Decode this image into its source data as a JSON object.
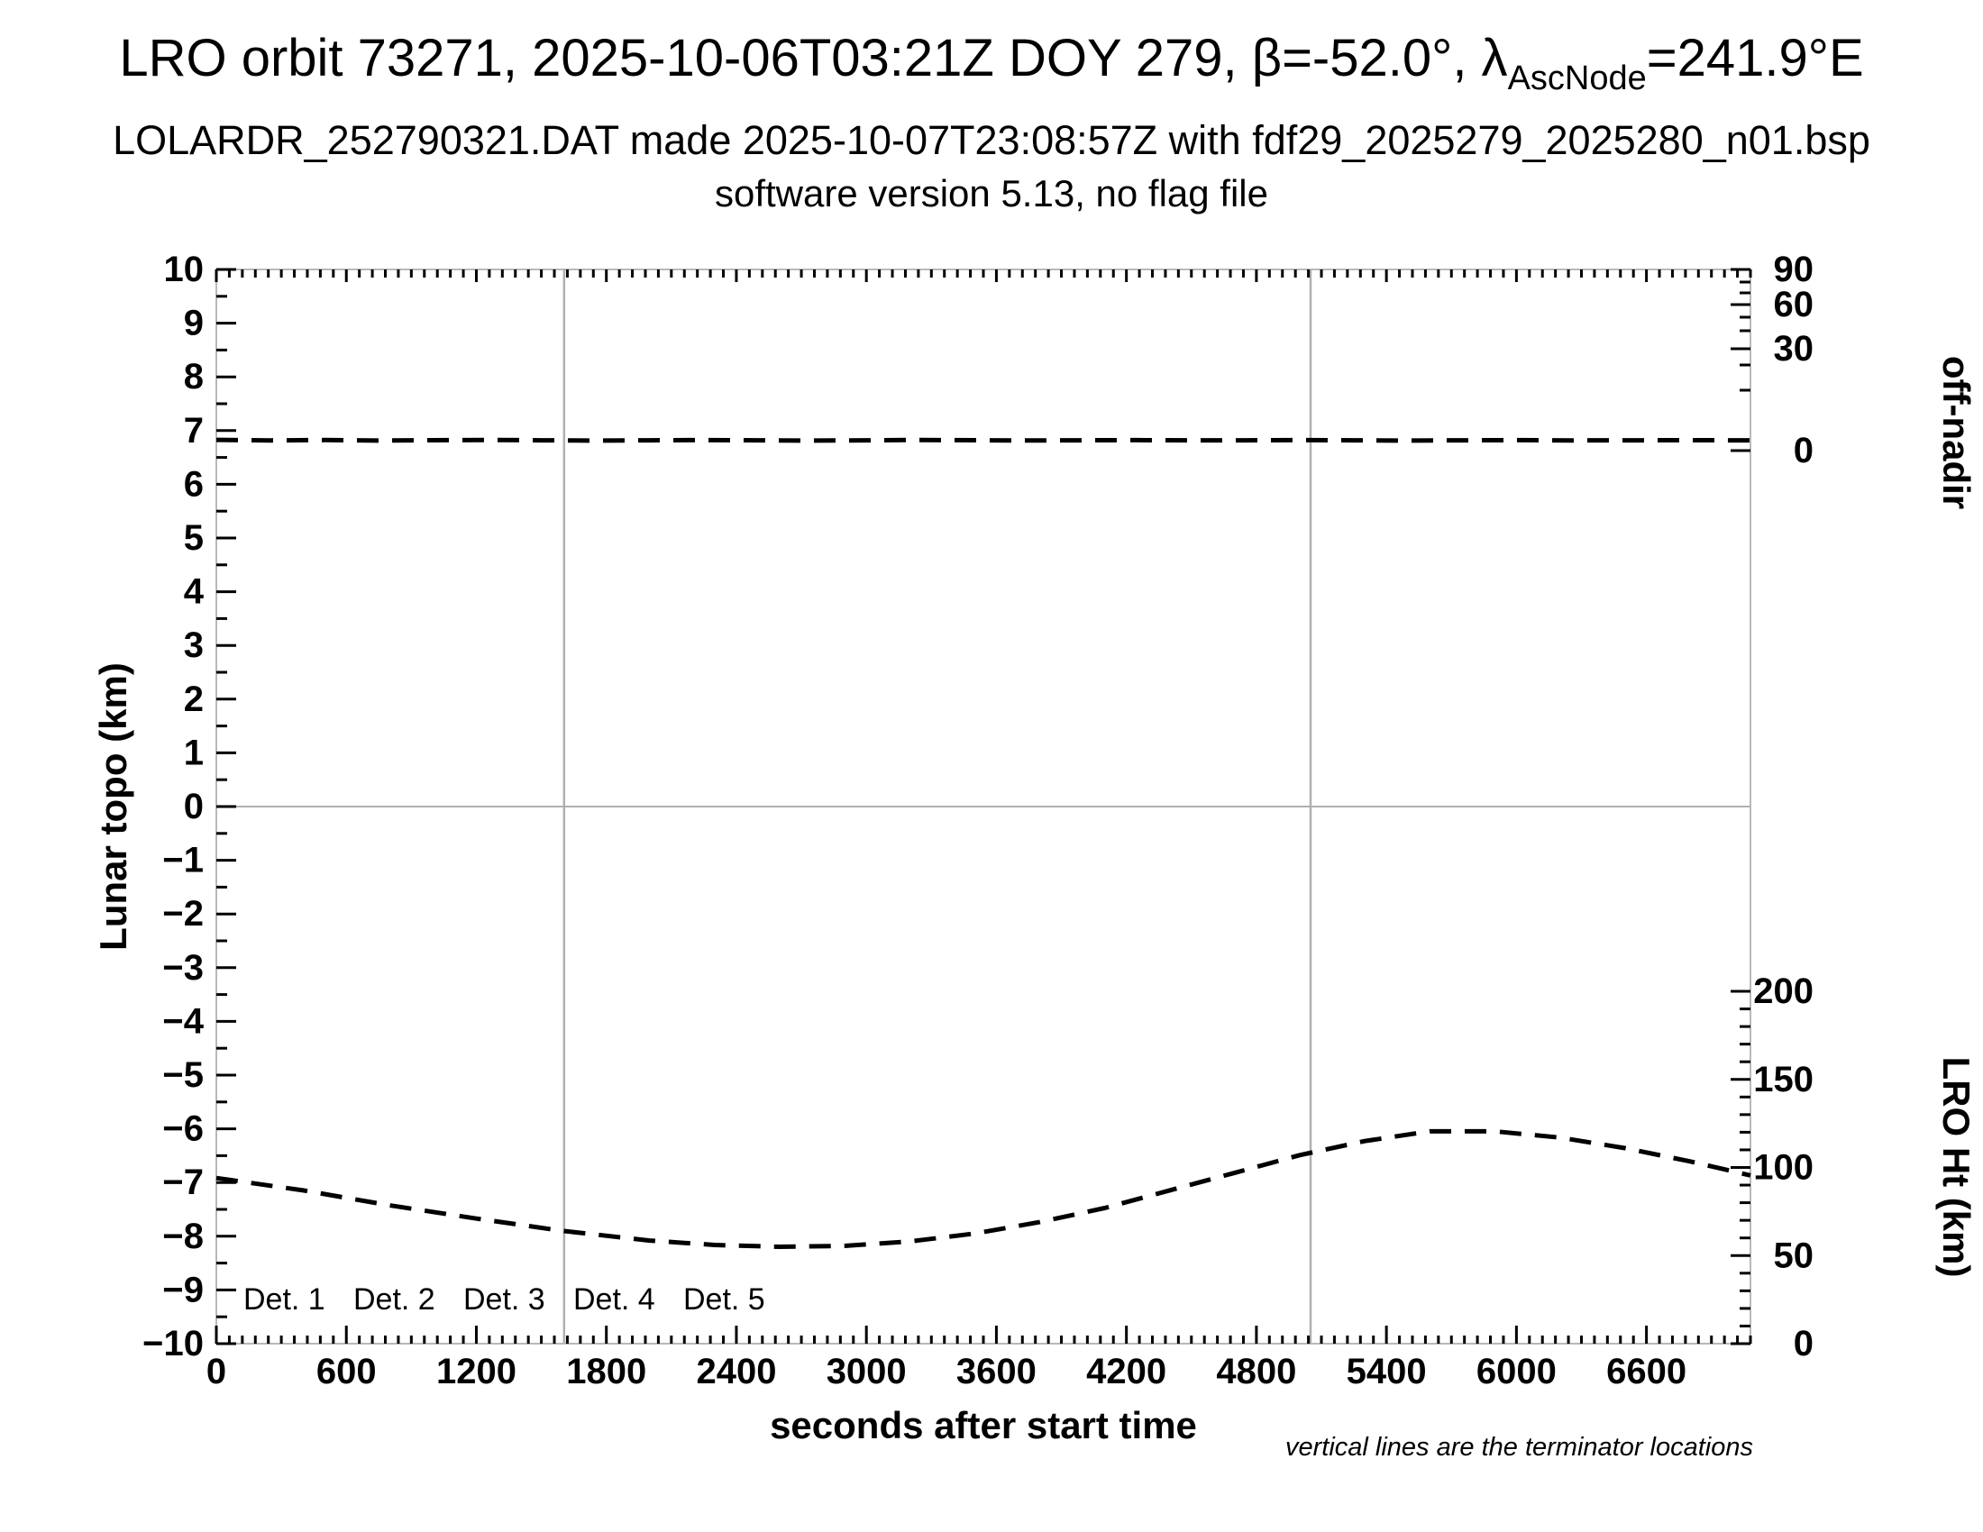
{
  "header": {
    "title_prefix": "LRO orbit 73271, 2025-10-06T03:21Z DOY 279, β=-52.0°, λ",
    "title_lambda_sub": "AscNode",
    "title_suffix": "=241.9°E",
    "subtitle": "LOLARDR_252790321.DAT made 2025-10-07T23:08:57Z with fdf29_2025279_2025280_n01.bsp",
    "version_line": "software version 5.13, no flag file"
  },
  "chart_data": {
    "type": "line",
    "x_axis": {
      "label": "seconds after start time",
      "range": [
        0,
        7080
      ],
      "major_tick_step": 600,
      "minor_tick_step": 60,
      "tick_labels": [
        "0",
        "600",
        "1200",
        "1800",
        "2400",
        "3000",
        "3600",
        "4200",
        "4800",
        "5400",
        "6000",
        "6600"
      ]
    },
    "y_axis_left": {
      "label": "Lunar topo (km)",
      "range": [
        -10,
        10
      ],
      "major_tick_step": 1,
      "minor_tick_step": 0.5,
      "tick_labels": [
        "10",
        "9",
        "8",
        "7",
        "6",
        "5",
        "4",
        "3",
        "2",
        "1",
        "0",
        "−1",
        "−2",
        "−3",
        "−4",
        "−5",
        "−6",
        "−7",
        "−8",
        "−9",
        "−10"
      ]
    },
    "y_axis_right_top": {
      "label": "off-nadir",
      "tick_values": [
        90,
        80,
        70,
        60,
        50,
        40,
        30,
        20,
        10,
        0
      ],
      "labeled_values": [
        90,
        60,
        30,
        0
      ],
      "tick_labels": [
        "90",
        "60",
        "30",
        "0"
      ],
      "scale": "nonlinear"
    },
    "y_axis_right_bottom": {
      "label": "LRO Ht (km)",
      "range": [
        0,
        200
      ],
      "major_tick_step": 50,
      "minor_tick_step": 10,
      "tick_labels": [
        "200",
        "150",
        "100",
        "50",
        "0"
      ]
    },
    "grid": {
      "horizontal_line_at_topo": 0,
      "terminator_lines_seconds": [
        1605,
        5050
      ]
    },
    "legend": {
      "items": [
        {
          "label": "Det. 1",
          "color": "#000000"
        },
        {
          "label": "Det. 2",
          "color": "#0000ff"
        },
        {
          "label": "Det. 3",
          "color": "#00dd22"
        },
        {
          "label": "Det. 4",
          "color": "#ffa500"
        },
        {
          "label": "Det. 5",
          "color": "#ff0000"
        }
      ]
    },
    "footnote": "vertical lines are the terminator locations",
    "series": [
      {
        "name": "spacecraft off-nadir angle",
        "axis": "y_axis_right_top",
        "unit": "deg",
        "line_style": "dashed",
        "color": "#000000",
        "points": [
          [
            0,
            1.78
          ],
          [
            250,
            1.68
          ],
          [
            500,
            1.74
          ],
          [
            750,
            1.66
          ],
          [
            1000,
            1.72
          ],
          [
            1250,
            1.76
          ],
          [
            1500,
            1.7
          ],
          [
            1750,
            1.66
          ],
          [
            2000,
            1.7
          ],
          [
            2250,
            1.74
          ],
          [
            2500,
            1.7
          ],
          [
            2750,
            1.65
          ],
          [
            3000,
            1.7
          ],
          [
            3250,
            1.76
          ],
          [
            3500,
            1.72
          ],
          [
            3750,
            1.67
          ],
          [
            4000,
            1.7
          ],
          [
            4250,
            1.73
          ],
          [
            4500,
            1.68
          ],
          [
            4750,
            1.7
          ],
          [
            5000,
            1.74
          ],
          [
            5250,
            1.7
          ],
          [
            5500,
            1.66
          ],
          [
            5750,
            1.7
          ],
          [
            6000,
            1.73
          ],
          [
            6250,
            1.68
          ],
          [
            6500,
            1.7
          ],
          [
            6750,
            1.72
          ],
          [
            7080,
            1.7
          ]
        ]
      },
      {
        "name": "LRO height",
        "axis": "y_axis_right_bottom",
        "unit": "km",
        "line_style": "dashed",
        "color": "#000000",
        "points": [
          [
            0,
            94
          ],
          [
            400,
            87
          ],
          [
            800,
            78.5
          ],
          [
            1200,
            71
          ],
          [
            1600,
            64
          ],
          [
            2000,
            58.5
          ],
          [
            2300,
            56
          ],
          [
            2600,
            55
          ],
          [
            2900,
            55.5
          ],
          [
            3200,
            58
          ],
          [
            3500,
            62.5
          ],
          [
            3800,
            69
          ],
          [
            4100,
            77
          ],
          [
            4400,
            87
          ],
          [
            4700,
            97
          ],
          [
            5000,
            107
          ],
          [
            5300,
            115
          ],
          [
            5600,
            120.5
          ],
          [
            5900,
            120.5
          ],
          [
            6200,
            117
          ],
          [
            6500,
            111
          ],
          [
            6800,
            103.5
          ],
          [
            7080,
            95.5
          ]
        ]
      }
    ]
  }
}
